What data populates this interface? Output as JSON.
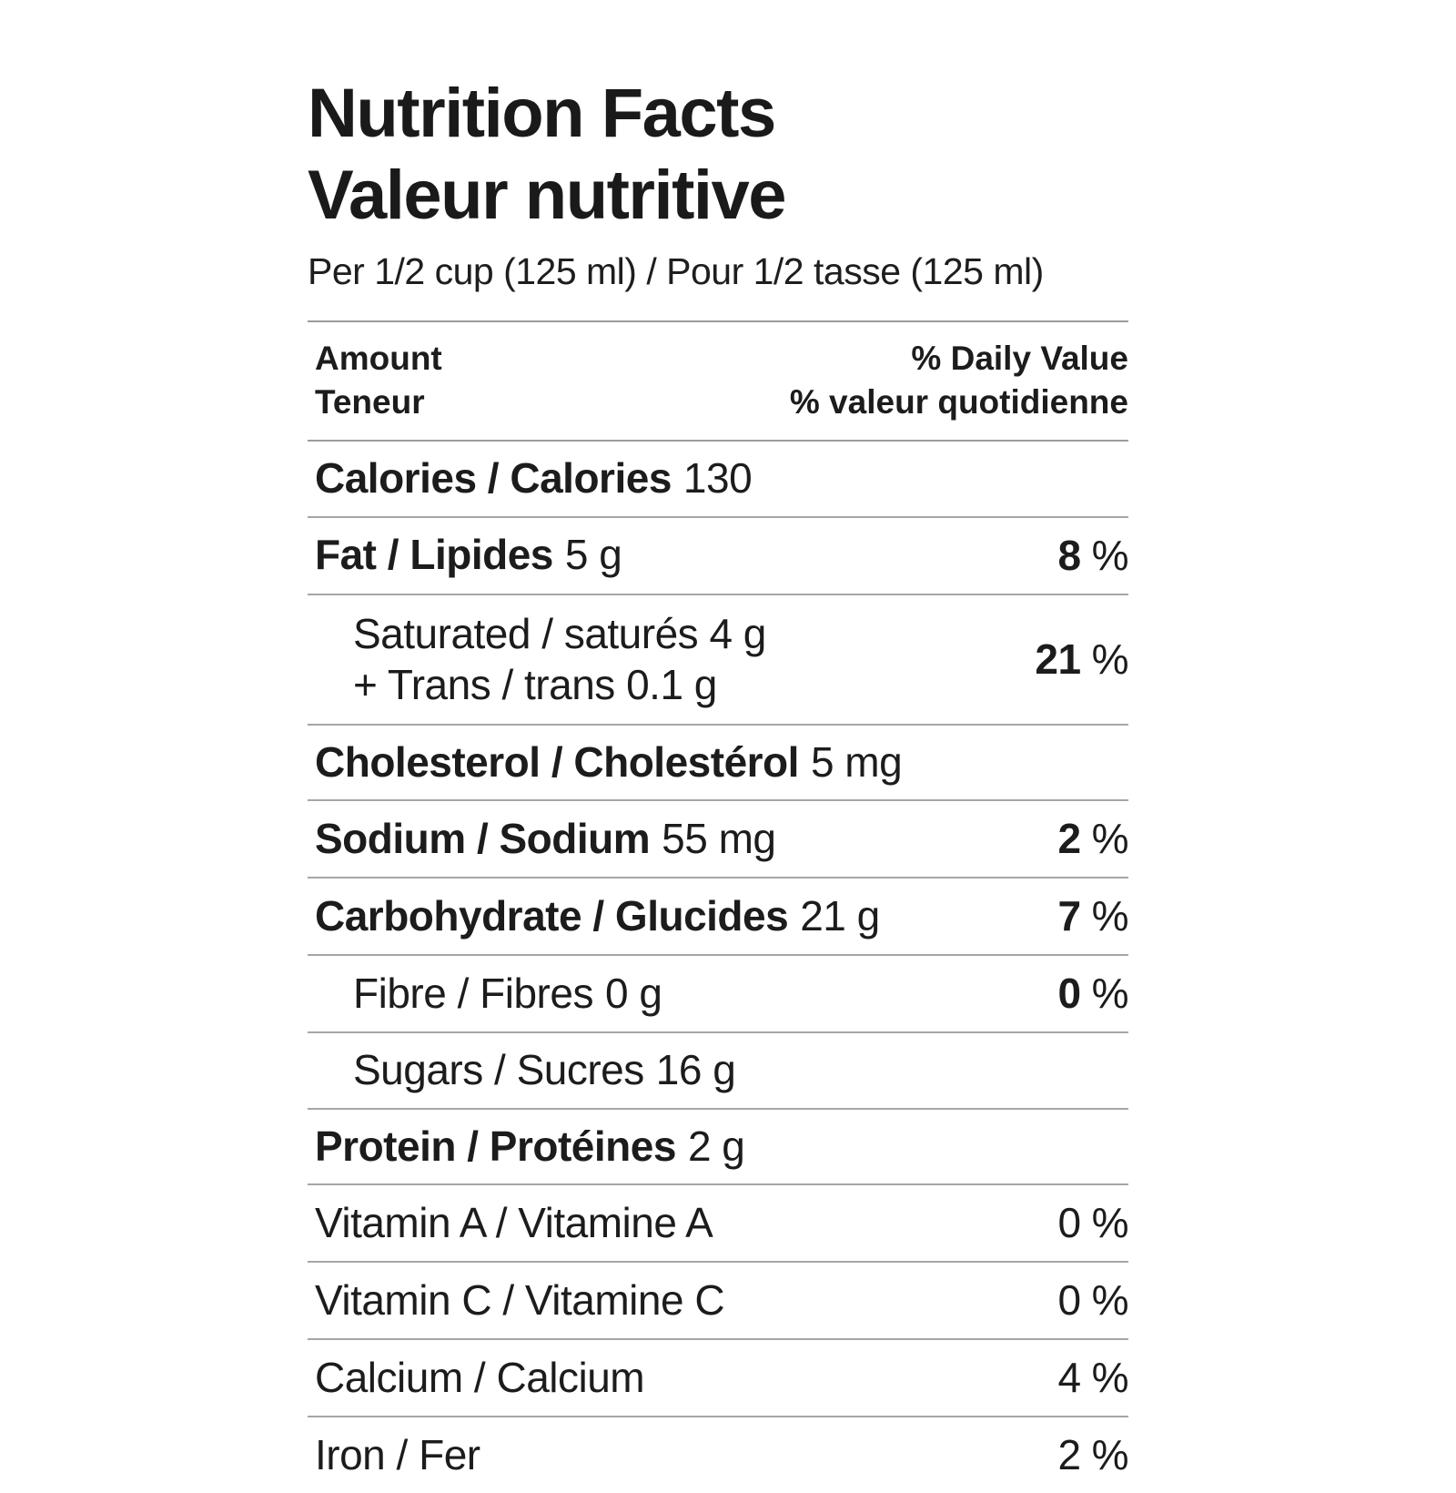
{
  "label": {
    "title_en": "Nutrition Facts",
    "title_fr": "Valeur nutritive",
    "serving": "Per 1/2 cup (125 ml) / Pour 1/2 tasse (125 ml)",
    "percent_sign": "%",
    "header": {
      "amount_en": "Amount",
      "amount_fr": "Teneur",
      "daily_value_en": "% Daily Value",
      "daily_value_fr": "% valeur quotidienne"
    },
    "rows": [
      {
        "name": "Calories / Calories",
        "amount": "130"
      },
      {
        "name": "Fat / Lipides",
        "amount": "5 g",
        "percent": "8"
      },
      {
        "line1": "Saturated / saturés 4 g",
        "line2": "+ Trans / trans 0.1 g",
        "percent": "21"
      },
      {
        "name": "Cholesterol / Cholestérol",
        "amount": "5 mg"
      },
      {
        "name": "Sodium / Sodium",
        "amount": "55 mg",
        "percent": "2"
      },
      {
        "name": "Carbohydrate / Glucides",
        "amount": "21 g",
        "percent": "7"
      },
      {
        "name": "Fibre / Fibres",
        "amount": "0 g",
        "percent": "0"
      },
      {
        "name": "Sugars / Sucres",
        "amount": "16 g"
      },
      {
        "name": "Protein / Protéines",
        "amount": "2 g"
      },
      {
        "name": "Vitamin A / Vitamine A",
        "percent": "0"
      },
      {
        "name": "Vitamin C / Vitamine C",
        "percent": "0"
      },
      {
        "name": "Calcium / Calcium",
        "percent": "4"
      },
      {
        "name": "Iron / Fer",
        "percent": "2"
      }
    ],
    "colors": {
      "text": "#1c1c1c",
      "divider": "#a6a6a6",
      "background": "#ffffff"
    }
  }
}
